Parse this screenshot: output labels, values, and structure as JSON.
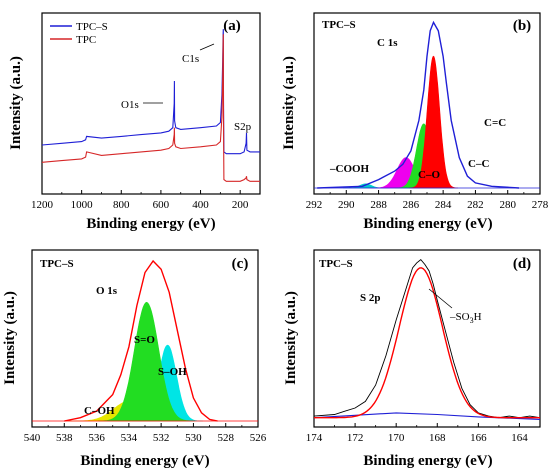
{
  "chart_data": [
    {
      "panel": "(a)",
      "type": "line",
      "xlabel": "Binding energy (eV)",
      "ylabel": "Intensity (a.u.)",
      "xlim": [
        1200,
        100
      ],
      "x_reversed": true,
      "xticks": [
        1200,
        1000,
        800,
        600,
        400,
        200
      ],
      "y_ticks_shown": false,
      "legend_position": "top-left",
      "annotations": [
        {
          "text": "C1s",
          "x": 285,
          "y": 0.93
        },
        {
          "text": "O1s",
          "x": 532,
          "y": 0.62
        },
        {
          "text": "S2p",
          "x": 168,
          "y": 0.34
        }
      ],
      "series": [
        {
          "name": "TPC–S",
          "color": "#1f1fd6",
          "x": [
            1200,
            1100,
            1000,
            980,
            975,
            900,
            800,
            700,
            600,
            560,
            540,
            533,
            532,
            531,
            525,
            500,
            400,
            320,
            300,
            292,
            288,
            286,
            285,
            284,
            282,
            270,
            230,
            200,
            180,
            170,
            168,
            166,
            150,
            120,
            100
          ],
          "y": [
            0.26,
            0.27,
            0.28,
            0.29,
            0.31,
            0.3,
            0.31,
            0.32,
            0.33,
            0.34,
            0.36,
            0.5,
            0.63,
            0.4,
            0.36,
            0.35,
            0.36,
            0.37,
            0.39,
            0.55,
            0.75,
            0.9,
            0.93,
            0.52,
            0.22,
            0.21,
            0.21,
            0.21,
            0.22,
            0.27,
            0.33,
            0.23,
            0.22,
            0.22,
            0.22
          ]
        },
        {
          "name": "TPC",
          "color": "#d62728",
          "x": [
            1200,
            1100,
            1000,
            980,
            975,
            900,
            800,
            700,
            600,
            560,
            540,
            533,
            532,
            531,
            525,
            500,
            400,
            320,
            300,
            292,
            288,
            286,
            285,
            284,
            282,
            270,
            230,
            200,
            180,
            170,
            168,
            166,
            150,
            120,
            100
          ],
          "y": [
            0.16,
            0.17,
            0.18,
            0.19,
            0.22,
            0.2,
            0.21,
            0.22,
            0.23,
            0.24,
            0.26,
            0.32,
            0.36,
            0.27,
            0.25,
            0.24,
            0.25,
            0.26,
            0.28,
            0.42,
            0.65,
            0.85,
            0.9,
            0.4,
            0.06,
            0.05,
            0.05,
            0.05,
            0.06,
            0.07,
            0.08,
            0.06,
            0.05,
            0.05,
            0.05
          ]
        }
      ]
    },
    {
      "panel": "(b)",
      "type": "area",
      "label": "TPC–S",
      "sublabel": "C 1s",
      "xlabel": "Binding energy (eV)",
      "ylabel": "Intensity (a.u.)",
      "xlim": [
        292,
        278
      ],
      "x_reversed": true,
      "xticks": [
        292,
        290,
        288,
        286,
        284,
        282,
        280,
        278
      ],
      "envelope": {
        "color": "#1f1fd6",
        "x": [
          291.8,
          289,
          288,
          287,
          286.5,
          286,
          285.5,
          285.2,
          285,
          284.8,
          284.6,
          284.3,
          284,
          283.8,
          283.5,
          283,
          282.5,
          282,
          281,
          279.3
        ],
        "y": [
          0.0,
          0.01,
          0.05,
          0.1,
          0.14,
          0.22,
          0.4,
          0.58,
          0.78,
          0.93,
          0.98,
          0.93,
          0.78,
          0.62,
          0.4,
          0.18,
          0.07,
          0.03,
          0.01,
          0.0
        ]
      },
      "components": [
        {
          "name": "C=C",
          "color": "#ff0000",
          "center": 284.6,
          "sigma": 0.38,
          "amplitude": 0.78
        },
        {
          "name": "C–C",
          "color": "#22dd22",
          "center": 285.2,
          "sigma": 0.45,
          "amplitude": 0.38
        },
        {
          "name": "C–O",
          "color": "#ee00ee",
          "center": 286.3,
          "sigma": 0.55,
          "amplitude": 0.18
        },
        {
          "name": "–COOH",
          "color": "#00cccc",
          "center": 288.8,
          "sigma": 0.35,
          "amplitude": 0.025
        }
      ]
    },
    {
      "panel": "(c)",
      "type": "area",
      "label": "TPC–S",
      "sublabel": "O 1s",
      "xlabel": "Binding energy (eV)",
      "ylabel": "Intensity (a.u.)",
      "xlim": [
        540,
        526
      ],
      "x_reversed": true,
      "xticks": [
        540,
        538,
        536,
        534,
        532,
        530,
        528,
        526
      ],
      "envelope": {
        "color": "#ff0000",
        "x": [
          538,
          537,
          536,
          535,
          534.5,
          534,
          533.5,
          533,
          532.5,
          532,
          531.5,
          531,
          530.5,
          530,
          529.5,
          529,
          528.5
        ],
        "y": [
          0.0,
          0.02,
          0.06,
          0.16,
          0.28,
          0.45,
          0.7,
          0.9,
          0.97,
          0.92,
          0.78,
          0.55,
          0.32,
          0.14,
          0.05,
          0.01,
          0.0
        ]
      },
      "components": [
        {
          "name": "S=O",
          "color": "#22dd22",
          "center": 532.9,
          "sigma": 0.75,
          "amplitude": 0.72
        },
        {
          "name": "S–OH",
          "color": "#00e5e5",
          "center": 531.6,
          "sigma": 0.55,
          "amplitude": 0.46
        },
        {
          "name": "C–OH",
          "color": "#e6e600",
          "center": 534.0,
          "sigma": 0.95,
          "amplitude": 0.12
        }
      ]
    },
    {
      "panel": "(d)",
      "type": "line",
      "label": "TPC–S",
      "sublabel": "S 2p",
      "xlabel": "Binding energy (eV)",
      "ylabel": "Intensity (a.u.)",
      "xlim": [
        174,
        163
      ],
      "x_reversed": true,
      "xticks": [
        174,
        172,
        170,
        168,
        166,
        164
      ],
      "annotation": "–SO3H",
      "series": [
        {
          "name": "raw",
          "color": "#000000",
          "x": [
            174,
            173,
            172.5,
            172,
            171.5,
            171,
            170.5,
            170,
            169.5,
            169.2,
            169,
            168.8,
            168.6,
            168.4,
            168.2,
            168,
            167.6,
            167.2,
            166.8,
            166.4,
            166,
            165.5,
            165,
            164.5,
            164,
            163.5,
            163
          ],
          "y": [
            0.03,
            0.04,
            0.06,
            0.08,
            0.12,
            0.22,
            0.4,
            0.62,
            0.82,
            0.94,
            0.97,
            0.99,
            0.96,
            0.92,
            0.84,
            0.74,
            0.55,
            0.36,
            0.2,
            0.1,
            0.05,
            0.03,
            0.02,
            0.03,
            0.02,
            0.03,
            0.02
          ]
        },
        {
          "name": "fit",
          "color": "#ff0000",
          "center": 168.8,
          "sigma": 1.05,
          "amplitude": 0.92,
          "offset": 0.02
        },
        {
          "name": "background",
          "color": "#1f1fd6",
          "x": [
            174,
            172,
            170,
            168,
            166,
            164,
            163
          ],
          "y": [
            0.02,
            0.035,
            0.05,
            0.04,
            0.025,
            0.015,
            0.01
          ]
        }
      ]
    }
  ]
}
